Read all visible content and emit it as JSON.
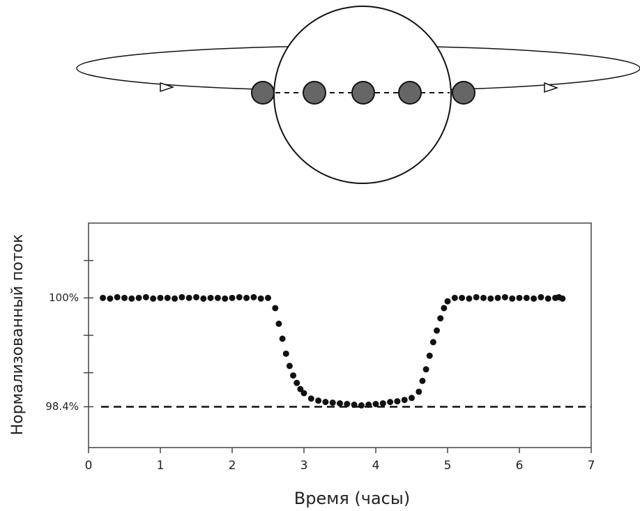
{
  "chart_data": {
    "type": "scatter",
    "x_label": "Время  (часы)",
    "y_label": "Нормализованный поток",
    "xlim": [
      0,
      7
    ],
    "xticks": [
      0,
      1,
      2,
      3,
      4,
      5,
      6,
      7
    ],
    "ylim": [
      97.8,
      101.1
    ],
    "yticks": [
      {
        "value": 100,
        "label": "100%"
      },
      {
        "value": 98.4,
        "label": "98.4%"
      }
    ],
    "yminor_ticks": [
      100.55,
      99.45,
      98.9
    ],
    "reference_line": 98.4,
    "color": "#111111",
    "x": [
      0.2,
      0.3,
      0.4,
      0.5,
      0.6,
      0.7,
      0.8,
      0.9,
      1.0,
      1.1,
      1.2,
      1.3,
      1.4,
      1.5,
      1.6,
      1.7,
      1.8,
      1.9,
      2.0,
      2.1,
      2.2,
      2.3,
      2.4,
      2.5,
      2.6,
      2.65,
      2.7,
      2.75,
      2.8,
      2.85,
      2.9,
      2.95,
      3.0,
      3.1,
      3.2,
      3.3,
      3.4,
      3.5,
      3.6,
      3.7,
      3.8,
      3.9,
      4.0,
      4.1,
      4.2,
      4.3,
      4.4,
      4.5,
      4.6,
      4.65,
      4.7,
      4.75,
      4.8,
      4.85,
      4.9,
      4.95,
      5.0,
      5.1,
      5.2,
      5.3,
      5.4,
      5.5,
      5.6,
      5.7,
      5.8,
      5.9,
      6.0,
      6.1,
      6.2,
      6.3,
      6.4,
      6.5,
      6.55,
      6.6
    ],
    "y": [
      100.0,
      99.99,
      100.01,
      100.0,
      99.99,
      100.0,
      100.01,
      99.99,
      100.0,
      100.0,
      99.99,
      100.01,
      100.0,
      100.01,
      99.99,
      100.0,
      100.0,
      99.99,
      100.0,
      100.01,
      100.0,
      100.01,
      99.99,
      100.0,
      99.85,
      99.62,
      99.4,
      99.18,
      99.0,
      98.86,
      98.75,
      98.66,
      98.6,
      98.52,
      98.49,
      98.47,
      98.46,
      98.45,
      98.44,
      98.43,
      98.42,
      98.43,
      98.44,
      98.45,
      98.47,
      98.48,
      98.5,
      98.53,
      98.62,
      98.78,
      98.95,
      99.15,
      99.35,
      99.52,
      99.7,
      99.85,
      99.95,
      100.0,
      100.0,
      99.99,
      100.01,
      100.0,
      99.99,
      100.0,
      100.01,
      99.99,
      100.0,
      100.0,
      99.99,
      100.01,
      99.99,
      100.0,
      100.01,
      99.99
    ]
  }
}
